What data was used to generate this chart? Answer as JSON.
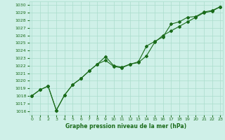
{
  "title": "Graphe pression niveau de la mer (hPa)",
  "xlabel": "Graphe pression niveau de la mer (hPa)",
  "background_color": "#cff0e8",
  "grid_color": "#aaddcc",
  "line_color": "#1a6b1a",
  "ylim": [
    1015.5,
    1030.5
  ],
  "xlim": [
    -0.3,
    23.3
  ],
  "yticks": [
    1016,
    1017,
    1018,
    1019,
    1020,
    1021,
    1022,
    1023,
    1024,
    1025,
    1026,
    1027,
    1028,
    1029,
    1030
  ],
  "xticks": [
    0,
    1,
    2,
    3,
    4,
    5,
    6,
    7,
    8,
    9,
    10,
    11,
    12,
    13,
    14,
    15,
    16,
    17,
    18,
    19,
    20,
    21,
    22,
    23
  ],
  "line1_x": [
    0,
    1,
    2,
    3,
    4,
    5,
    6,
    7,
    8,
    9,
    10,
    11,
    12,
    13,
    14,
    15,
    16,
    17,
    18,
    19,
    20,
    21,
    22,
    23
  ],
  "line1_y": [
    1018.0,
    1018.8,
    1019.3,
    1016.1,
    1018.1,
    1019.5,
    1020.3,
    1021.3,
    1022.2,
    1023.2,
    1022.0,
    1021.8,
    1022.2,
    1022.4,
    1023.3,
    1025.1,
    1026.0,
    1026.6,
    1027.2,
    1027.8,
    1028.4,
    1029.0,
    1029.2,
    1029.8
  ],
  "line2_x": [
    0,
    1,
    2,
    3,
    4,
    5,
    6,
    7,
    8,
    9,
    10,
    11,
    12,
    13,
    14,
    15,
    16,
    17,
    18,
    19,
    20,
    21,
    22,
    23
  ],
  "line2_y": [
    1018.0,
    1018.8,
    1019.3,
    1016.1,
    1018.1,
    1019.5,
    1020.3,
    1021.3,
    1022.2,
    1022.7,
    1021.9,
    1021.7,
    1022.2,
    1022.5,
    1024.6,
    1025.2,
    1025.8,
    1027.5,
    1027.8,
    1028.4,
    1028.5,
    1029.1,
    1029.3,
    1029.8
  ],
  "line3_x": [
    0,
    23
  ],
  "line3_y": [
    1018.0,
    1029.8
  ],
  "marker": "D",
  "markersize": 2.0,
  "linewidth": 0.8,
  "tick_fontsize": 4.5,
  "label_fontsize": 5.5
}
